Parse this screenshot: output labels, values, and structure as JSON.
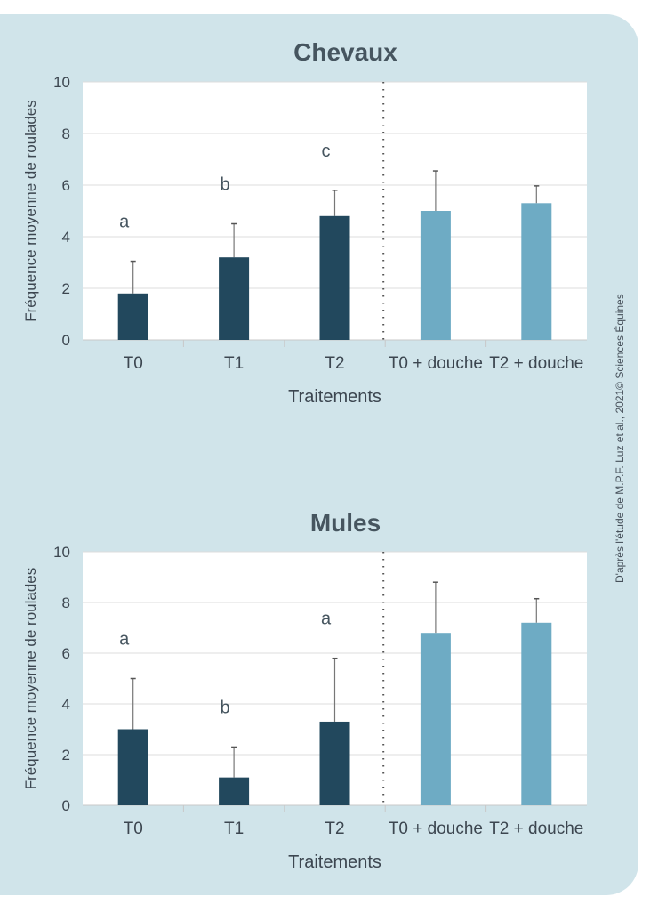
{
  "credit": "D'après l'étude de M.P.F. Luz et al., 2021© Sciences Équines",
  "colors": {
    "treatment": "#22485d",
    "douche": "#6eabc4",
    "panel": "#d0e4ea"
  },
  "chart_data": [
    {
      "type": "bar",
      "title": "Chevaux",
      "xlabel": "Traitements",
      "ylabel": "Fréquence moyenne de roulades",
      "ylim": [
        0,
        10
      ],
      "yticks": [
        0,
        2,
        4,
        6,
        8,
        10
      ],
      "grid": true,
      "categories": [
        "T0",
        "T1",
        "T2",
        "T0 + douche",
        "T2 + douche"
      ],
      "values": [
        1.8,
        3.2,
        4.8,
        5.0,
        5.3
      ],
      "error_upper": [
        3.05,
        4.5,
        5.8,
        6.55,
        5.97
      ],
      "annotations": [
        "a",
        "b",
        "c",
        "",
        ""
      ]
    },
    {
      "type": "bar",
      "title": "Mules",
      "xlabel": "Traitements",
      "ylabel": "Fréquence moyenne de roulades",
      "ylim": [
        0,
        10
      ],
      "yticks": [
        0,
        2,
        4,
        6,
        8,
        10
      ],
      "grid": true,
      "categories": [
        "T0",
        "T1",
        "T2",
        "T0 + douche",
        "T2 + douche"
      ],
      "values": [
        3.0,
        1.1,
        3.3,
        6.8,
        7.2
      ],
      "error_upper": [
        5.0,
        2.3,
        5.8,
        8.8,
        8.15
      ],
      "annotations": [
        "a",
        "b",
        "a",
        "",
        ""
      ]
    }
  ]
}
